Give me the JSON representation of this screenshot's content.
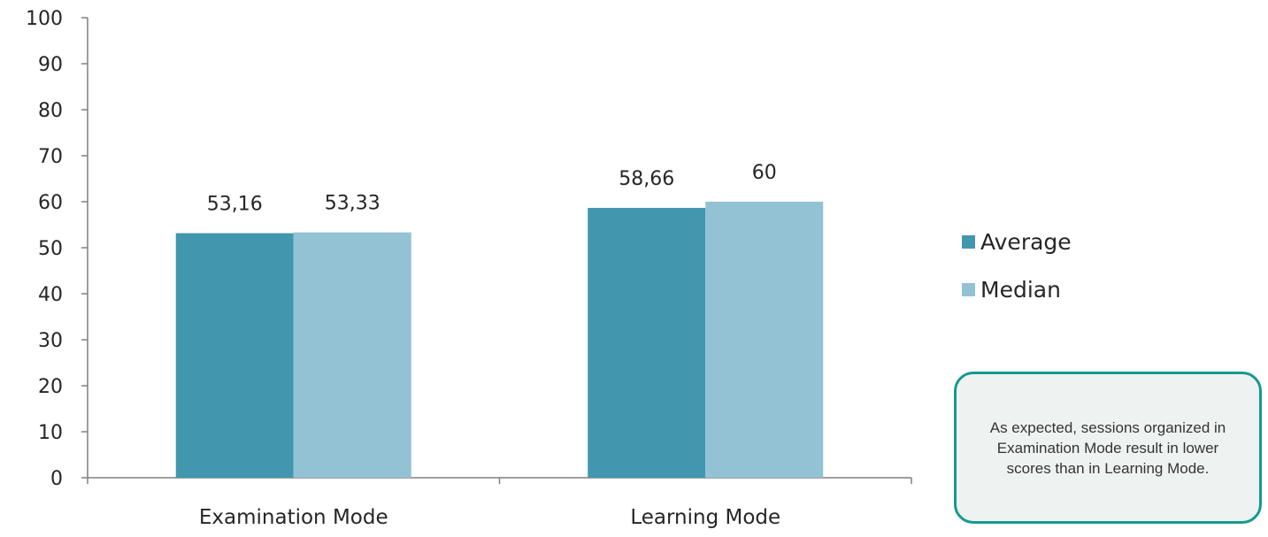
{
  "chart_data": {
    "type": "bar",
    "categories": [
      "Examination Mode",
      "Learning Mode"
    ],
    "series": [
      {
        "name": "Average",
        "values": [
          53.16,
          58.66
        ],
        "labels": [
          "53,16",
          "58,66"
        ],
        "color": "#4297ae"
      },
      {
        "name": "Median",
        "values": [
          53.33,
          60
        ],
        "labels": [
          "53,33",
          "60"
        ],
        "color": "#93c2d4"
      }
    ],
    "title": "",
    "xlabel": "",
    "ylabel": "",
    "ylim": [
      0,
      100
    ],
    "yticks": [
      "0",
      "10",
      "20",
      "30",
      "40",
      "50",
      "60",
      "70",
      "80",
      "90",
      "100"
    ],
    "grid": false,
    "legend_position": "right"
  },
  "legend": {
    "average_label": "Average",
    "median_label": "Median"
  },
  "note": {
    "text": "As expected, sessions organized in Examination Mode result in lower scores than in Learning Mode."
  }
}
